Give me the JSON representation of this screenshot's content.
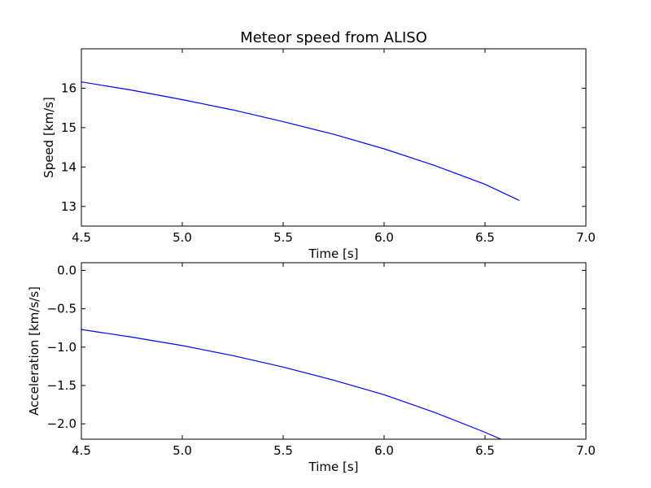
{
  "chart_data": [
    {
      "type": "line",
      "title": "Meteor speed from  ALISO",
      "xlabel": "Time [s]",
      "ylabel": "Speed [km/s]",
      "xlim": [
        4.5,
        7.0
      ],
      "ylim": [
        12.5,
        17.0
      ],
      "xticks": [
        4.5,
        5.0,
        5.5,
        6.0,
        6.5,
        7.0
      ],
      "xtick_labels": [
        "4.5",
        "5.0",
        "5.5",
        "6.0",
        "6.5",
        "7.0"
      ],
      "yticks": [
        13,
        14,
        15,
        16
      ],
      "ytick_labels": [
        "13",
        "14",
        "15",
        "16"
      ],
      "grid": false,
      "series": [
        {
          "color": "#0000ff",
          "x": [
            4.5,
            4.75,
            5.0,
            5.25,
            5.5,
            5.75,
            6.0,
            6.25,
            6.5,
            6.67
          ],
          "y": [
            16.16,
            15.95,
            15.71,
            15.45,
            15.15,
            14.83,
            14.46,
            14.04,
            13.56,
            13.15
          ]
        }
      ]
    },
    {
      "type": "line",
      "title": "",
      "xlabel": "Time [s]",
      "ylabel": "Acceleration [km/s/s]",
      "xlim": [
        4.5,
        7.0
      ],
      "ylim": [
        -2.2,
        0.1
      ],
      "xticks": [
        4.5,
        5.0,
        5.5,
        6.0,
        6.5,
        7.0
      ],
      "xtick_labels": [
        "4.5",
        "5.0",
        "5.5",
        "6.0",
        "6.5",
        "7.0"
      ],
      "yticks": [
        0.0,
        -0.5,
        -1.0,
        -1.5,
        -2.0
      ],
      "ytick_labels": [
        "0.0",
        "−0.5",
        "−1.0",
        "−1.5",
        "−2.0"
      ],
      "grid": false,
      "series": [
        {
          "color": "#0000ff",
          "x": [
            4.5,
            4.75,
            5.0,
            5.25,
            5.5,
            5.75,
            6.0,
            6.25,
            6.5,
            6.58
          ],
          "y": [
            -0.77,
            -0.87,
            -0.98,
            -1.11,
            -1.26,
            -1.43,
            -1.62,
            -1.85,
            -2.11,
            -2.2
          ]
        }
      ]
    }
  ]
}
